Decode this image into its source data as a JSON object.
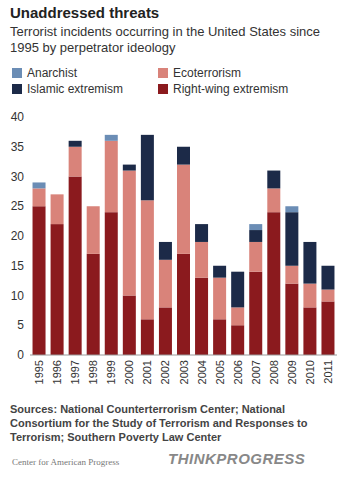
{
  "chart_data": {
    "type": "bar",
    "stacked": true,
    "title": "Unaddressed threats",
    "subtitle": "Terrorist incidents occurring in the United States since 1995 by perpetrator ideology",
    "categories": [
      "1995",
      "1996",
      "1997",
      "1998",
      "1999",
      "2000",
      "2001",
      "2002",
      "2003",
      "2004",
      "2005",
      "2006",
      "2007",
      "2008",
      "2009",
      "2010",
      "2011"
    ],
    "series": [
      {
        "name": "Right-wing extremism",
        "color": "#8b1a1e",
        "values": [
          25,
          22,
          30,
          17,
          24,
          10,
          6,
          8,
          17,
          13,
          6,
          5,
          14,
          24,
          12,
          8,
          9
        ]
      },
      {
        "name": "Ecoterrorism",
        "color": "#d9837a",
        "values": [
          3,
          5,
          5,
          8,
          12,
          21,
          20,
          8,
          15,
          6,
          7,
          3,
          5,
          4,
          3,
          4,
          2
        ]
      },
      {
        "name": "Islamic extremism",
        "color": "#1c2a48",
        "values": [
          0,
          0,
          1,
          0,
          0,
          1,
          11,
          3,
          3,
          3,
          2,
          6,
          2,
          3,
          9,
          7,
          4
        ]
      },
      {
        "name": "Anarchist",
        "color": "#6b8db5",
        "values": [
          1,
          0,
          0,
          0,
          1,
          0,
          0,
          0,
          0,
          0,
          0,
          0,
          1,
          0,
          1,
          0,
          0
        ]
      }
    ],
    "ylim": [
      0,
      40
    ],
    "yticks": [
      0,
      5,
      10,
      15,
      20,
      25,
      30,
      35,
      40
    ],
    "grid": false,
    "legend": "top",
    "annotations": [
      "Sources: National Counterterrorism Center; National Consortium for the Study of Terrorism and Responses to Terrorism; Southern Poverty Law Center",
      "Center for American Progress",
      "THINKPROGRESS"
    ]
  }
}
